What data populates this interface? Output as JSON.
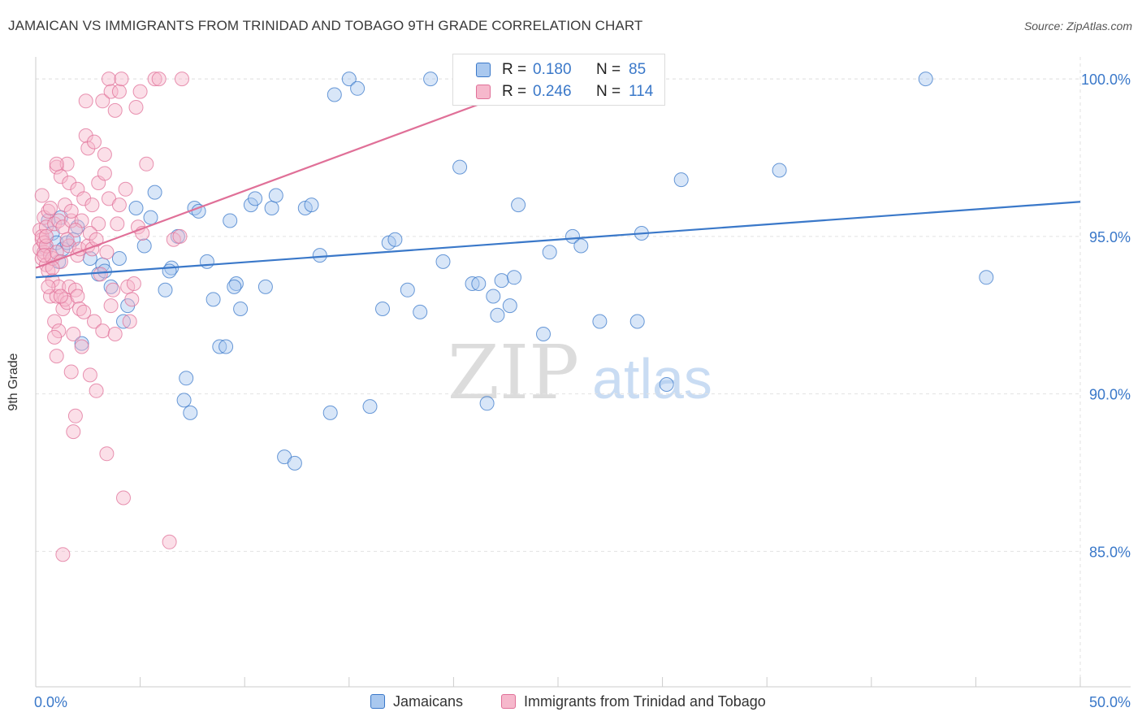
{
  "title": "JAMAICAN VS IMMIGRANTS FROM TRINIDAD AND TOBAGO 9TH GRADE CORRELATION CHART",
  "source": "Source: ZipAtlas.com",
  "watermark": {
    "zip": "ZIP",
    "atlas": "atlas"
  },
  "colors": {
    "blue": "#3a78c9",
    "blue_fill": "#a9c8ef",
    "pink": "#e07098",
    "pink_fill": "#f6b8cc",
    "grid": "#e2e2e2"
  },
  "legend": {
    "rows": [
      {
        "r_label": "R =",
        "r_value": "0.180",
        "n_label": "N =",
        "n_value": "85",
        "color": "blue"
      },
      {
        "r_label": "R =",
        "r_value": "0.246",
        "n_label": "N =",
        "n_value": "114",
        "color": "pink"
      }
    ]
  },
  "bottom_legend": [
    {
      "label": "Jamaicans",
      "color": "blue"
    },
    {
      "label": "Immigrants from Trinidad and Tobago",
      "color": "pink"
    }
  ],
  "chart_data": {
    "type": "scatter",
    "title": "JAMAICAN VS IMMIGRANTS FROM TRINIDAD AND TOBAGO 9TH GRADE CORRELATION CHART",
    "xlabel": "",
    "ylabel": "9th Grade",
    "xlim": [
      0,
      50
    ],
    "ylim": [
      80.7,
      100.7
    ],
    "x_tick_labels": [
      "0.0%",
      "50.0%"
    ],
    "y_tick_labels": [
      "85.0%",
      "90.0%",
      "95.0%",
      "100.0%"
    ],
    "y_ticks": [
      85,
      90,
      95,
      100
    ],
    "grid": true,
    "series": [
      {
        "name": "Jamaicans",
        "color": "blue",
        "trend": {
          "x": [
            0,
            50
          ],
          "y": [
            93.7,
            96.1
          ]
        },
        "points": [
          [
            0.6,
            95.5
          ],
          [
            0.8,
            95.1
          ],
          [
            1.0,
            94.8
          ],
          [
            1.1,
            94.2
          ],
          [
            1.3,
            94.6
          ],
          [
            1.5,
            94.8
          ],
          [
            1.8,
            94.9
          ],
          [
            2.2,
            91.6
          ],
          [
            2.6,
            94.3
          ],
          [
            3.0,
            93.8
          ],
          [
            3.2,
            94.1
          ],
          [
            3.6,
            93.4
          ],
          [
            4.0,
            94.3
          ],
          [
            4.2,
            92.3
          ],
          [
            4.4,
            92.8
          ],
          [
            4.8,
            95.9
          ],
          [
            5.2,
            94.7
          ],
          [
            5.5,
            95.6
          ],
          [
            5.7,
            96.4
          ],
          [
            6.2,
            93.3
          ],
          [
            6.5,
            94.0
          ],
          [
            6.8,
            95.0
          ],
          [
            7.1,
            89.8
          ],
          [
            7.4,
            89.4
          ],
          [
            7.6,
            95.9
          ],
          [
            7.8,
            95.8
          ],
          [
            8.2,
            94.2
          ],
          [
            8.5,
            93.0
          ],
          [
            8.8,
            91.5
          ],
          [
            9.1,
            91.5
          ],
          [
            9.3,
            95.5
          ],
          [
            9.6,
            93.5
          ],
          [
            9.8,
            92.7
          ],
          [
            10.3,
            96.0
          ],
          [
            10.5,
            96.2
          ],
          [
            11.0,
            93.4
          ],
          [
            11.3,
            95.9
          ],
          [
            11.5,
            96.3
          ],
          [
            11.9,
            88.0
          ],
          [
            12.4,
            87.8
          ],
          [
            12.9,
            95.9
          ],
          [
            13.2,
            96.0
          ],
          [
            13.6,
            94.4
          ],
          [
            14.1,
            89.4
          ],
          [
            14.3,
            99.5
          ],
          [
            15.0,
            100.0
          ],
          [
            15.4,
            99.7
          ],
          [
            16.6,
            92.7
          ],
          [
            16.9,
            94.8
          ],
          [
            17.2,
            94.9
          ],
          [
            17.8,
            93.3
          ],
          [
            18.4,
            92.6
          ],
          [
            18.9,
            100.0
          ],
          [
            19.5,
            94.2
          ],
          [
            20.3,
            97.2
          ],
          [
            20.9,
            93.5
          ],
          [
            21.2,
            93.5
          ],
          [
            21.6,
            89.7
          ],
          [
            21.9,
            93.1
          ],
          [
            22.1,
            92.5
          ],
          [
            22.3,
            93.6
          ],
          [
            22.7,
            92.8
          ],
          [
            22.9,
            93.7
          ],
          [
            23.1,
            96.0
          ],
          [
            24.3,
            91.9
          ],
          [
            24.6,
            94.5
          ],
          [
            25.7,
            95.0
          ],
          [
            26.1,
            94.7
          ],
          [
            27.0,
            92.3
          ],
          [
            28.1,
            100.0
          ],
          [
            28.8,
            92.3
          ],
          [
            29.0,
            95.1
          ],
          [
            30.2,
            90.3
          ],
          [
            30.9,
            96.8
          ],
          [
            35.6,
            97.1
          ],
          [
            42.6,
            100.0
          ],
          [
            45.5,
            93.7
          ],
          [
            7.2,
            90.5
          ],
          [
            3.3,
            93.9
          ],
          [
            2.0,
            95.3
          ],
          [
            1.2,
            95.6
          ],
          [
            0.5,
            94.6
          ],
          [
            6.4,
            93.9
          ],
          [
            9.5,
            93.4
          ],
          [
            16.0,
            89.6
          ]
        ]
      },
      {
        "name": "Immigrants from Trinidad and Tobago",
        "color": "pink",
        "trend": {
          "x": [
            0,
            24.5
          ],
          "y": [
            94.0,
            100.0
          ]
        },
        "points": [
          [
            0.2,
            94.6
          ],
          [
            0.2,
            95.2
          ],
          [
            0.3,
            94.9
          ],
          [
            0.3,
            94.3
          ],
          [
            0.3,
            95.0
          ],
          [
            0.4,
            95.6
          ],
          [
            0.4,
            94.5
          ],
          [
            0.4,
            94.8
          ],
          [
            0.5,
            94.1
          ],
          [
            0.5,
            95.3
          ],
          [
            0.5,
            94.7
          ],
          [
            0.6,
            93.9
          ],
          [
            0.6,
            95.8
          ],
          [
            0.7,
            93.1
          ],
          [
            0.7,
            94.4
          ],
          [
            0.7,
            95.9
          ],
          [
            0.8,
            93.6
          ],
          [
            0.8,
            94.3
          ],
          [
            0.9,
            92.3
          ],
          [
            0.9,
            95.4
          ],
          [
            1.0,
            91.2
          ],
          [
            1.0,
            93.1
          ],
          [
            1.0,
            94.5
          ],
          [
            1.0,
            97.2
          ],
          [
            1.1,
            92.0
          ],
          [
            1.1,
            93.4
          ],
          [
            1.1,
            95.5
          ],
          [
            1.2,
            96.9
          ],
          [
            1.2,
            94.2
          ],
          [
            1.3,
            92.7
          ],
          [
            1.3,
            95.3
          ],
          [
            1.4,
            93.0
          ],
          [
            1.4,
            96.0
          ],
          [
            1.5,
            92.9
          ],
          [
            1.5,
            97.3
          ],
          [
            1.6,
            93.4
          ],
          [
            1.6,
            94.7
          ],
          [
            1.6,
            96.7
          ],
          [
            1.7,
            90.7
          ],
          [
            1.7,
            95.5
          ],
          [
            1.8,
            91.9
          ],
          [
            1.8,
            88.8
          ],
          [
            1.9,
            89.3
          ],
          [
            1.9,
            93.3
          ],
          [
            2.0,
            93.1
          ],
          [
            2.0,
            94.4
          ],
          [
            2.0,
            96.5
          ],
          [
            2.1,
            92.7
          ],
          [
            2.1,
            94.6
          ],
          [
            2.2,
            91.5
          ],
          [
            2.2,
            95.5
          ],
          [
            2.3,
            96.2
          ],
          [
            2.4,
            99.3
          ],
          [
            2.4,
            98.2
          ],
          [
            2.5,
            97.8
          ],
          [
            2.5,
            94.7
          ],
          [
            2.6,
            90.6
          ],
          [
            2.7,
            96.0
          ],
          [
            2.7,
            94.6
          ],
          [
            2.8,
            98.0
          ],
          [
            2.8,
            92.3
          ],
          [
            2.9,
            90.1
          ],
          [
            3.0,
            96.7
          ],
          [
            3.0,
            95.4
          ],
          [
            3.1,
            93.8
          ],
          [
            3.2,
            99.3
          ],
          [
            3.2,
            92.0
          ],
          [
            3.3,
            97.6
          ],
          [
            3.3,
            97.0
          ],
          [
            3.4,
            94.5
          ],
          [
            3.4,
            88.1
          ],
          [
            3.5,
            100.0
          ],
          [
            3.5,
            96.2
          ],
          [
            3.6,
            99.6
          ],
          [
            3.7,
            93.3
          ],
          [
            3.8,
            91.9
          ],
          [
            3.8,
            99.0
          ],
          [
            3.9,
            95.4
          ],
          [
            4.0,
            99.6
          ],
          [
            4.0,
            96.0
          ],
          [
            4.1,
            100.0
          ],
          [
            4.2,
            86.7
          ],
          [
            4.3,
            96.5
          ],
          [
            4.4,
            93.4
          ],
          [
            4.5,
            92.3
          ],
          [
            4.7,
            93.5
          ],
          [
            4.8,
            99.1
          ],
          [
            4.9,
            95.3
          ],
          [
            5.0,
            99.6
          ],
          [
            5.1,
            95.1
          ],
          [
            5.3,
            97.3
          ],
          [
            5.7,
            100.0
          ],
          [
            5.9,
            100.0
          ],
          [
            6.4,
            85.3
          ],
          [
            6.6,
            94.9
          ],
          [
            6.9,
            95.0
          ],
          [
            7.0,
            100.0
          ],
          [
            1.3,
            84.9
          ],
          [
            0.3,
            96.3
          ],
          [
            0.6,
            93.4
          ],
          [
            1.0,
            97.3
          ],
          [
            1.9,
            95.2
          ],
          [
            2.6,
            95.1
          ],
          [
            0.8,
            94.0
          ],
          [
            1.2,
            93.1
          ],
          [
            0.5,
            95.0
          ],
          [
            0.4,
            94.4
          ],
          [
            2.3,
            92.6
          ],
          [
            1.5,
            94.9
          ],
          [
            0.9,
            91.8
          ],
          [
            3.6,
            92.8
          ],
          [
            4.6,
            93.0
          ],
          [
            1.7,
            95.8
          ],
          [
            2.9,
            94.9
          ]
        ]
      }
    ]
  }
}
